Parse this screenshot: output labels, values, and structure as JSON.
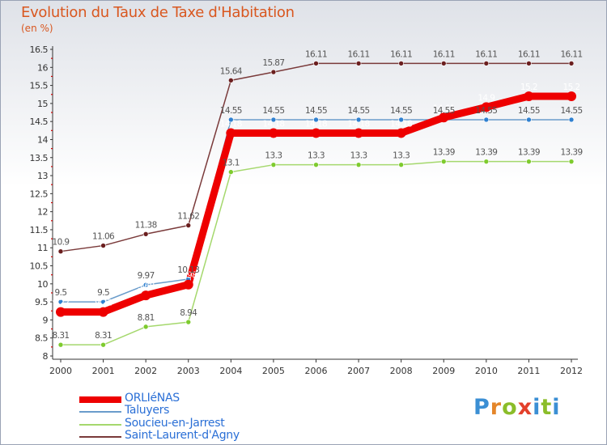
{
  "header": {
    "title": "Evolution du Taux de Taxe d'Habitation",
    "unit": "(en %)"
  },
  "logo": {
    "letters": [
      "P",
      "r",
      "o",
      "x",
      "i",
      "t",
      "i"
    ],
    "colors": [
      "#3b8fd4",
      "#e4862a",
      "#8bbd2a",
      "#e3402b",
      "#3b8fd4",
      "#8bbd2a",
      "#3b8fd4"
    ]
  },
  "chart_data": {
    "type": "line",
    "x": [
      "2000",
      "2001",
      "2002",
      "2003",
      "2004",
      "2005",
      "2006",
      "2007",
      "2008",
      "2009",
      "2010",
      "2011",
      "2012"
    ],
    "ylim": [
      8,
      16.5
    ],
    "yticks": [
      "8",
      "8.5",
      "9",
      "9.5",
      "10",
      "10.5",
      "11",
      "11.5",
      "12",
      "12.5",
      "13",
      "13.5",
      "14",
      "14.5",
      "15",
      "15.5",
      "16",
      "16.5"
    ],
    "grid": false,
    "legend": "bottom-left",
    "series": [
      {
        "name": "ORLIéNAS",
        "color": "#ee0000",
        "width": 9,
        "marker": 6,
        "label_color": "#ffffff",
        "values": [
          9.22,
          9.22,
          9.68,
          9.98,
          14.18,
          14.18,
          14.18,
          14.18,
          14.18,
          14.61,
          14.9,
          15.2,
          15.2
        ]
      },
      {
        "name": "Taluyers",
        "color": "#6a9ccb",
        "width": 1.5,
        "marker": 3,
        "marker_fill": "#2f80d0",
        "label_color": "#555555",
        "values": [
          9.5,
          9.5,
          9.97,
          10.13,
          14.55,
          14.55,
          14.55,
          14.55,
          14.55,
          14.55,
          14.55,
          14.55,
          14.55
        ]
      },
      {
        "name": "Soucieu-en-Jarrest",
        "color": "#a5d86d",
        "width": 1.5,
        "marker": 3,
        "marker_fill": "#7ecb2e",
        "label_color": "#555555",
        "values": [
          8.31,
          8.31,
          8.81,
          8.94,
          13.1,
          13.3,
          13.3,
          13.3,
          13.3,
          13.39,
          13.39,
          13.39,
          13.39
        ]
      },
      {
        "name": "Saint-Laurent-d'Agny",
        "color": "#7a3a3a",
        "width": 1.5,
        "marker": 3,
        "marker_fill": "#6b1f1f",
        "label_color": "#555555",
        "values": [
          10.9,
          11.06,
          11.38,
          11.62,
          15.64,
          15.87,
          16.11,
          16.11,
          16.11,
          16.11,
          16.11,
          16.11,
          16.11
        ]
      }
    ],
    "data_labels": [
      [
        "9.22",
        "9.22",
        "9.68",
        "9.98",
        "14.18",
        "14.18",
        "14.18",
        "14.18",
        "14.18",
        "14.61",
        "14.9",
        "15.2",
        "15.2"
      ],
      [
        "9.5",
        "9.5",
        "9.97",
        "10.13",
        "14.55",
        "14.55",
        "14.55",
        "14.55",
        "14.55",
        "14.55",
        "14.55",
        "14.55",
        "14.55"
      ],
      [
        "8.31",
        "8.31",
        "8.81",
        "8.94",
        "13.1",
        "13.3",
        "13.3",
        "13.3",
        "13.3",
        "13.39",
        "13.39",
        "13.39",
        "13.39"
      ],
      [
        "10.9",
        "11.06",
        "11.38",
        "11.62",
        "15.64",
        "15.87",
        "16.11",
        "16.11",
        "16.11",
        "16.11",
        "16.11",
        "16.11",
        "16.11"
      ]
    ]
  }
}
